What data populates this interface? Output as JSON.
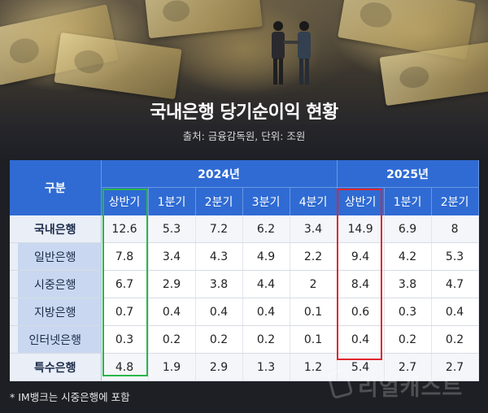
{
  "title": "국내은행 당기순이익 현황",
  "subtitle": "출처: 금융감독원, 단위: 조원",
  "table": {
    "corner_label": "구분",
    "years": [
      {
        "label": "2024년",
        "span": 5
      },
      {
        "label": "2025년",
        "span": 3
      }
    ],
    "columns": [
      "상반기",
      "1분기",
      "2분기",
      "3분기",
      "4분기",
      "상반기",
      "1분기",
      "2분기"
    ],
    "rows": [
      {
        "label": "국내은행",
        "type": "main",
        "values": [
          "12.6",
          "5.3",
          "7.2",
          "6.2",
          "3.4",
          "14.9",
          "6.9",
          "8"
        ]
      },
      {
        "label": "일반은행",
        "type": "sub",
        "values": [
          "7.8",
          "3.4",
          "4.3",
          "4.9",
          "2.2",
          "9.4",
          "4.2",
          "5.3"
        ]
      },
      {
        "label": "시중은행",
        "type": "sub",
        "values": [
          "6.7",
          "2.9",
          "3.8",
          "4.4",
          "2",
          "8.4",
          "3.8",
          "4.7"
        ]
      },
      {
        "label": "지방은행",
        "type": "sub",
        "values": [
          "0.7",
          "0.4",
          "0.4",
          "0.4",
          "0.1",
          "0.6",
          "0.3",
          "0.4"
        ]
      },
      {
        "label": "인터넷은행",
        "type": "sub",
        "values": [
          "0.3",
          "0.2",
          "0.2",
          "0.2",
          "0.1",
          "0.4",
          "0.2",
          "0.2"
        ]
      },
      {
        "label": "특수은행",
        "type": "main",
        "values": [
          "4.8",
          "1.9",
          "2.9",
          "1.3",
          "1.2",
          "5.4",
          "2.7",
          "2.7"
        ]
      }
    ]
  },
  "footnote": "* IM뱅크는 시중은행에 포함",
  "logo_text": "리얼캐스트",
  "colors": {
    "header_blue": "#2f6bd3",
    "highlight_2024": "#2bb54a",
    "highlight_2025": "#e3262c"
  }
}
